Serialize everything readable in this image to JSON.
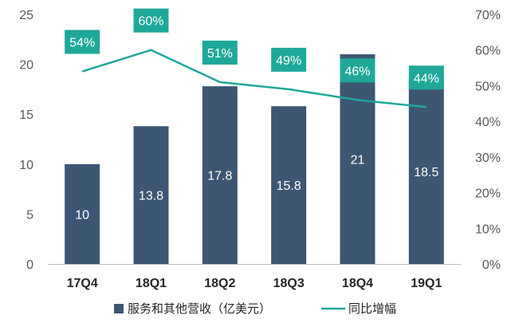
{
  "chart_data": {
    "type": "bar",
    "categories": [
      "17Q4",
      "18Q1",
      "18Q2",
      "18Q3",
      "18Q4",
      "19Q1"
    ],
    "series": [
      {
        "name": "服务和其他营收（亿美元）",
        "type": "bar",
        "axis": "left",
        "values": [
          10,
          13.8,
          17.8,
          15.8,
          21,
          18.5
        ],
        "labels": [
          "10",
          "13.8",
          "17.8",
          "15.8",
          "21",
          "18.5"
        ],
        "color": "#3d5674"
      },
      {
        "name": "同比增幅",
        "type": "line",
        "axis": "right",
        "values": [
          54,
          60,
          51,
          49,
          46,
          44
        ],
        "labels": [
          "54%",
          "60%",
          "51%",
          "49%",
          "46%",
          "44%"
        ],
        "color": "#1fa89a"
      }
    ],
    "y_left": {
      "ylim": [
        0,
        25
      ],
      "ticks": [
        0,
        5,
        10,
        15,
        20,
        25
      ],
      "tick_labels": [
        "0",
        "5",
        "10",
        "15",
        "20",
        "25"
      ]
    },
    "y_right": {
      "ylim": [
        0,
        70
      ],
      "ticks": [
        0,
        10,
        20,
        30,
        40,
        50,
        60,
        70
      ],
      "tick_labels": [
        "0%",
        "10%",
        "20%",
        "30%",
        "40%",
        "50%",
        "60%",
        "70%"
      ]
    },
    "title": "",
    "xlabel": "",
    "ylabel": "",
    "grid": false,
    "legend_position": "bottom"
  },
  "colors": {
    "bar": "#3d5674",
    "line": "#1fa89a",
    "label_box": "#1fa89a",
    "axis": "#bfbfbf"
  }
}
